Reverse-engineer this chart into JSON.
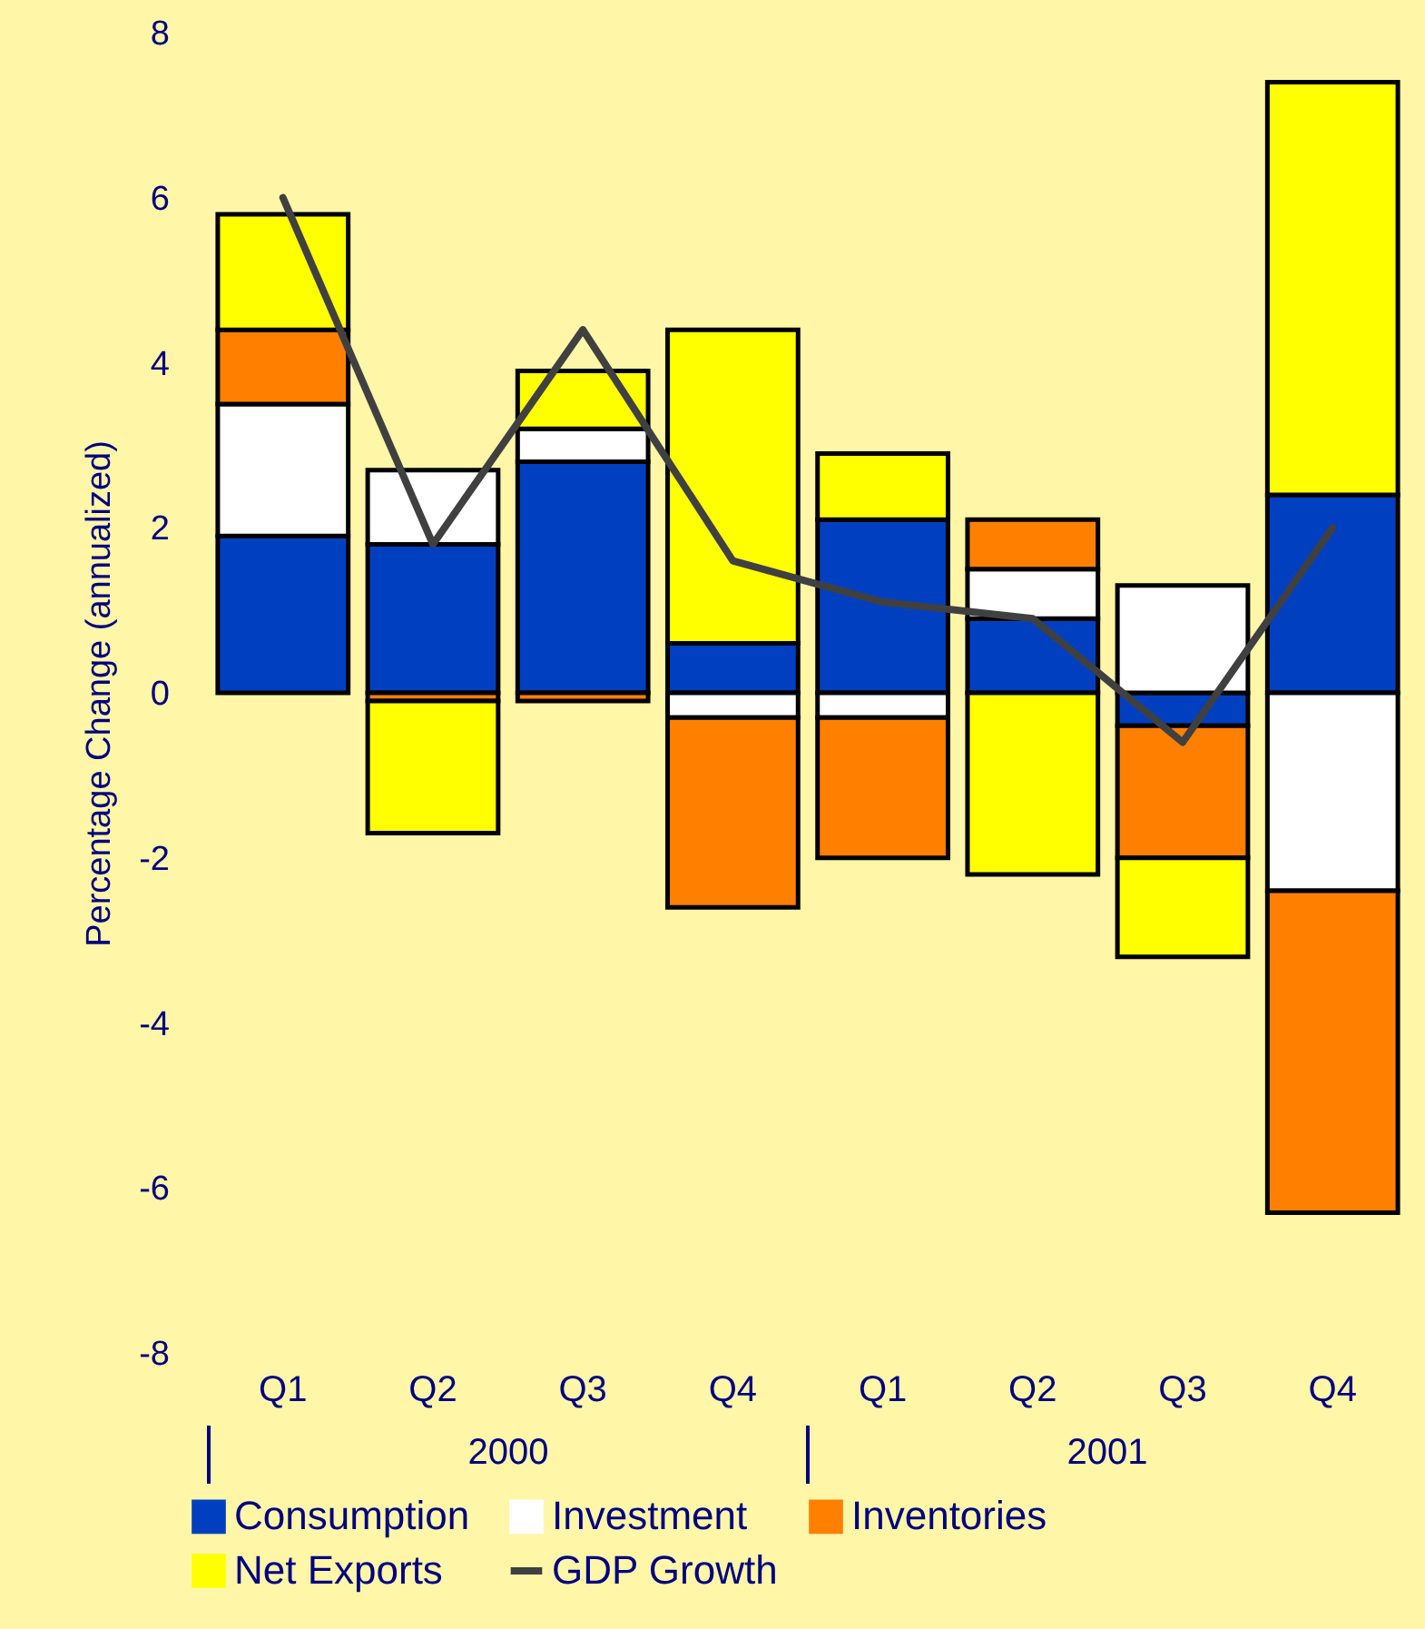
{
  "chart_data": {
    "type": "bar",
    "stacked": true,
    "ylabel": "Percentage Change (annualized)",
    "categories": [
      "Q1",
      "Q2",
      "Q3",
      "Q4",
      "Q1",
      "Q2",
      "Q3",
      "Q4"
    ],
    "annotations": [
      "2000",
      "2001"
    ],
    "ylim": [
      -8,
      8
    ],
    "yticks": [
      -8,
      -6,
      -4,
      -2,
      0,
      2,
      4,
      6,
      8
    ],
    "legend": "bottom",
    "series": [
      {
        "name": "Consumption",
        "color": "#0040c0",
        "values": [
          1.9,
          1.8,
          2.8,
          0.6,
          2.1,
          0.9,
          -0.4,
          2.4
        ]
      },
      {
        "name": "Investment",
        "color": "#ffffff",
        "values": [
          1.6,
          0.9,
          0.4,
          -0.3,
          -0.3,
          0.6,
          1.3,
          -2.4
        ]
      },
      {
        "name": "Inventories",
        "color": "#ff8000",
        "values": [
          0.9,
          -0.1,
          -0.1,
          -2.3,
          -1.7,
          0.6,
          -1.6,
          -3.9
        ]
      },
      {
        "name": "Net Exports",
        "color": "#ffff00",
        "values": [
          1.4,
          -1.6,
          0.7,
          3.8,
          0.8,
          -2.2,
          -1.2,
          5.0
        ]
      },
      {
        "name": "GDP Growth",
        "type": "line",
        "color": "#404040",
        "values": [
          6.0,
          1.8,
          4.4,
          1.6,
          1.1,
          0.9,
          -0.6,
          2.0
        ]
      }
    ]
  }
}
